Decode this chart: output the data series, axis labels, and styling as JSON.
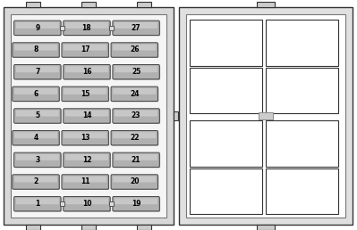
{
  "fuse_color": "#b0b0b0",
  "fuse_border_color": "#444444",
  "fuse_text_color": "#000000",
  "fuse_font_size": 5.5,
  "fuses": [
    {
      "num": 9,
      "col": 0,
      "row": 0,
      "indent": true
    },
    {
      "num": 18,
      "col": 1,
      "row": 0,
      "indent": true
    },
    {
      "num": 27,
      "col": 2,
      "row": 0,
      "indent": true
    },
    {
      "num": 8,
      "col": 0,
      "row": 1,
      "indent": false
    },
    {
      "num": 17,
      "col": 1,
      "row": 1,
      "indent": false
    },
    {
      "num": 26,
      "col": 2,
      "row": 1,
      "indent": false
    },
    {
      "num": 7,
      "col": 0,
      "row": 2,
      "indent": true
    },
    {
      "num": 16,
      "col": 1,
      "row": 2,
      "indent": true
    },
    {
      "num": 25,
      "col": 2,
      "row": 2,
      "indent": true
    },
    {
      "num": 6,
      "col": 0,
      "row": 3,
      "indent": false
    },
    {
      "num": 15,
      "col": 1,
      "row": 3,
      "indent": false
    },
    {
      "num": 24,
      "col": 2,
      "row": 3,
      "indent": false
    },
    {
      "num": 5,
      "col": 0,
      "row": 4,
      "indent": true
    },
    {
      "num": 14,
      "col": 1,
      "row": 4,
      "indent": true
    },
    {
      "num": 23,
      "col": 2,
      "row": 4,
      "indent": true
    },
    {
      "num": 4,
      "col": 0,
      "row": 5,
      "indent": false
    },
    {
      "num": 13,
      "col": 1,
      "row": 5,
      "indent": false
    },
    {
      "num": 22,
      "col": 2,
      "row": 5,
      "indent": false
    },
    {
      "num": 3,
      "col": 0,
      "row": 6,
      "indent": true
    },
    {
      "num": 12,
      "col": 1,
      "row": 6,
      "indent": true
    },
    {
      "num": 21,
      "col": 2,
      "row": 6,
      "indent": true
    },
    {
      "num": 2,
      "col": 0,
      "row": 7,
      "indent": false
    },
    {
      "num": 11,
      "col": 1,
      "row": 7,
      "indent": false
    },
    {
      "num": 20,
      "col": 2,
      "row": 7,
      "indent": false
    },
    {
      "num": 1,
      "col": 0,
      "row": 8,
      "indent": true
    },
    {
      "num": 10,
      "col": 1,
      "row": 8,
      "indent": true
    },
    {
      "num": 19,
      "col": 2,
      "row": 8,
      "indent": true
    }
  ]
}
